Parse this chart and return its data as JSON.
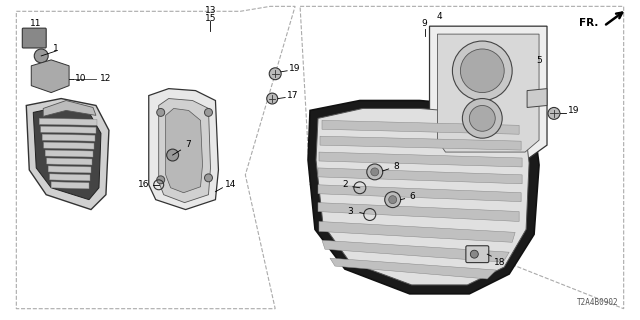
{
  "title": "",
  "diagram_id": "T2A4B0902",
  "background_color": "#ffffff",
  "line_color": "#000000",
  "fr_label": "FR."
}
